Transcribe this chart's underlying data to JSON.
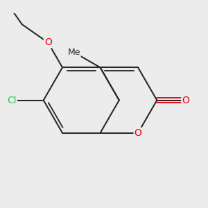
{
  "bg_color": "#ececec",
  "bond_color": "#2a2a2a",
  "bond_width": 1.5,
  "atom_colors": {
    "O": "#e8000d",
    "Cl": "#2dc84d",
    "C": "#2a2a2a"
  },
  "font_size_atom": 10,
  "font_size_methyl": 9
}
